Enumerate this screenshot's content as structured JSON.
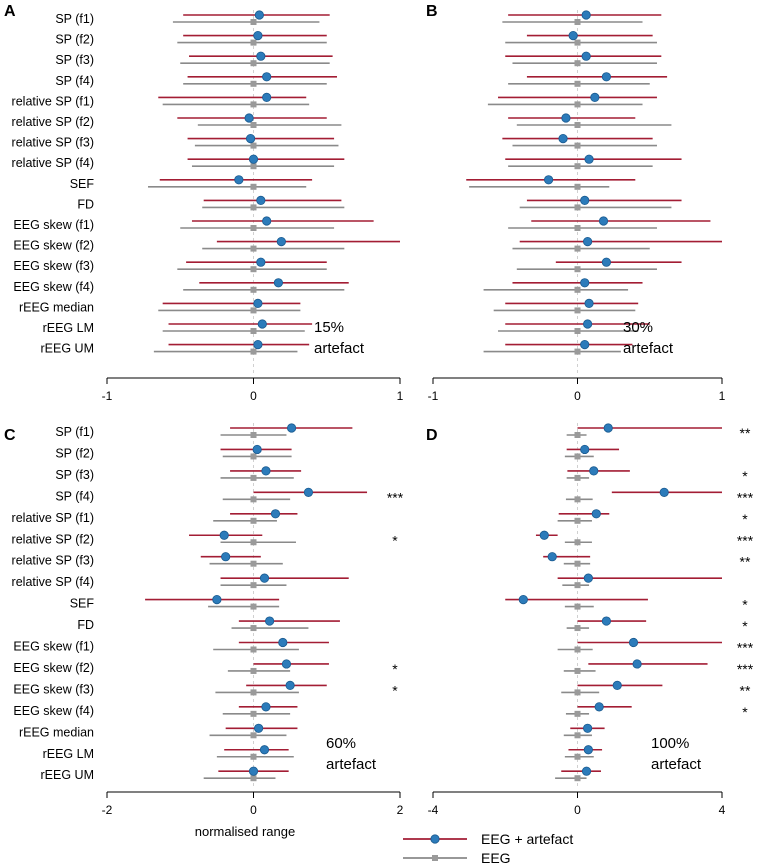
{
  "chart_data": {
    "type": "forest",
    "features": [
      "SP (f1)",
      "SP (f2)",
      "SP (f3)",
      "SP (f4)",
      "relative SP (f1)",
      "relative SP (f2)",
      "relative SP (f3)",
      "relative SP (f4)",
      "SEF",
      "FD",
      "EEG skew (f1)",
      "EEG skew (f2)",
      "EEG skew (f3)",
      "EEG skew (f4)",
      "rEEG median",
      "rEEG LM",
      "rEEG UM"
    ],
    "xlabel": "normalised range",
    "legend": {
      "artefact": "EEG + artefact",
      "clean": "EEG"
    },
    "colors": {
      "artefact": "#a31d34",
      "clean": "#8a8a8a",
      "point": "#2c7bba",
      "square": "#9a9a9a"
    },
    "panels": [
      {
        "letter": "A",
        "annotation": [
          "15%",
          "artefact"
        ],
        "xlim": [
          -1,
          1
        ],
        "ticks": [
          "-1",
          "0",
          "1"
        ],
        "artefact": [
          [
            0.04,
            -0.48,
            0.52
          ],
          [
            0.03,
            -0.48,
            0.5
          ],
          [
            0.05,
            -0.44,
            0.54
          ],
          [
            0.09,
            -0.45,
            0.57
          ],
          [
            0.09,
            -0.65,
            0.36
          ],
          [
            -0.03,
            -0.52,
            0.5
          ],
          [
            -0.02,
            -0.45,
            0.55
          ],
          [
            0.0,
            -0.45,
            0.62
          ],
          [
            -0.1,
            -0.64,
            0.4
          ],
          [
            0.05,
            -0.34,
            0.6
          ],
          [
            0.09,
            -0.42,
            0.82
          ],
          [
            0.19,
            -0.25,
            1.0
          ],
          [
            0.05,
            -0.46,
            0.5
          ],
          [
            0.17,
            -0.37,
            0.65
          ],
          [
            0.03,
            -0.62,
            0.32
          ],
          [
            0.06,
            -0.58,
            0.4
          ],
          [
            0.03,
            -0.58,
            0.38
          ]
        ],
        "clean": [
          [
            0.0,
            -0.55,
            0.45
          ],
          [
            0.0,
            -0.52,
            0.5
          ],
          [
            0.0,
            -0.5,
            0.52
          ],
          [
            0.0,
            -0.48,
            0.5
          ],
          [
            0.0,
            -0.62,
            0.38
          ],
          [
            0.0,
            -0.38,
            0.6
          ],
          [
            0.0,
            -0.4,
            0.58
          ],
          [
            0.0,
            -0.42,
            0.55
          ],
          [
            0.0,
            -0.72,
            0.36
          ],
          [
            0.0,
            -0.35,
            0.62
          ],
          [
            0.0,
            -0.5,
            0.55
          ],
          [
            0.0,
            -0.35,
            0.62
          ],
          [
            0.0,
            -0.52,
            0.5
          ],
          [
            0.0,
            -0.48,
            0.62
          ],
          [
            0.0,
            -0.65,
            0.32
          ],
          [
            0.0,
            -0.62,
            0.35
          ],
          [
            0.0,
            -0.68,
            0.3
          ]
        ],
        "stars": [
          "",
          "",
          "",
          "",
          "",
          "",
          "",
          "",
          "",
          "",
          "",
          "",
          "",
          "",
          "",
          "",
          ""
        ]
      },
      {
        "letter": "B",
        "annotation": [
          "30%",
          "artefact"
        ],
        "xlim": [
          -1,
          1
        ],
        "ticks": [
          "-1",
          "0",
          "1"
        ],
        "artefact": [
          [
            0.06,
            -0.48,
            0.58
          ],
          [
            -0.03,
            -0.35,
            0.52
          ],
          [
            0.06,
            -0.5,
            0.58
          ],
          [
            0.2,
            -0.35,
            0.62
          ],
          [
            0.12,
            -0.55,
            0.55
          ],
          [
            -0.08,
            -0.48,
            0.4
          ],
          [
            -0.1,
            -0.52,
            0.52
          ],
          [
            0.08,
            -0.5,
            0.72
          ],
          [
            -0.2,
            -0.77,
            0.4
          ],
          [
            0.05,
            -0.35,
            0.72
          ],
          [
            0.18,
            -0.32,
            0.92
          ],
          [
            0.07,
            -0.4,
            1.0
          ],
          [
            0.2,
            -0.15,
            0.72
          ],
          [
            0.05,
            -0.45,
            0.45
          ],
          [
            0.08,
            -0.5,
            0.42
          ],
          [
            0.07,
            -0.5,
            0.5
          ],
          [
            0.05,
            -0.5,
            0.38
          ]
        ],
        "clean": [
          [
            0.0,
            -0.52,
            0.45
          ],
          [
            0.0,
            -0.5,
            0.55
          ],
          [
            0.0,
            -0.45,
            0.55
          ],
          [
            0.0,
            -0.48,
            0.5
          ],
          [
            0.0,
            -0.62,
            0.45
          ],
          [
            0.0,
            -0.42,
            0.65
          ],
          [
            0.0,
            -0.45,
            0.55
          ],
          [
            0.0,
            -0.48,
            0.52
          ],
          [
            0.0,
            -0.75,
            0.22
          ],
          [
            0.0,
            -0.4,
            0.65
          ],
          [
            0.0,
            -0.48,
            0.55
          ],
          [
            0.0,
            -0.45,
            0.5
          ],
          [
            0.0,
            -0.42,
            0.55
          ],
          [
            0.0,
            -0.65,
            0.35
          ],
          [
            0.0,
            -0.58,
            0.4
          ],
          [
            0.0,
            -0.55,
            0.42
          ],
          [
            0.0,
            -0.65,
            0.3
          ]
        ],
        "stars": [
          "",
          "",
          "",
          "",
          "",
          "",
          "",
          "",
          "",
          "",
          "",
          "",
          "",
          "",
          "",
          "",
          ""
        ]
      },
      {
        "letter": "C",
        "annotation": [
          "60%",
          "artefact"
        ],
        "xlim": [
          -2,
          2
        ],
        "ticks": [
          "-2",
          "0",
          "2"
        ],
        "artefact": [
          [
            0.52,
            -0.32,
            1.35
          ],
          [
            0.05,
            -0.45,
            0.52
          ],
          [
            0.17,
            -0.32,
            0.65
          ],
          [
            0.75,
            0.0,
            1.55
          ],
          [
            0.3,
            -0.32,
            0.6
          ],
          [
            -0.4,
            -0.88,
            0.12
          ],
          [
            -0.38,
            -0.72,
            0.1
          ],
          [
            0.15,
            -0.45,
            1.3
          ],
          [
            -0.5,
            -1.48,
            0.35
          ],
          [
            0.22,
            -0.2,
            1.18
          ],
          [
            0.4,
            -0.2,
            1.03
          ],
          [
            0.45,
            0.0,
            1.03
          ],
          [
            0.5,
            -0.1,
            1.0
          ],
          [
            0.17,
            -0.2,
            0.6
          ],
          [
            0.07,
            -0.38,
            0.6
          ],
          [
            0.15,
            -0.4,
            0.48
          ],
          [
            0.0,
            -0.48,
            0.48
          ]
        ],
        "clean": [
          [
            0.0,
            -0.45,
            0.45
          ],
          [
            0.0,
            -0.42,
            0.52
          ],
          [
            0.0,
            -0.45,
            0.55
          ],
          [
            0.0,
            -0.42,
            0.5
          ],
          [
            0.0,
            -0.55,
            0.32
          ],
          [
            0.0,
            -0.45,
            0.58
          ],
          [
            0.0,
            -0.6,
            0.4
          ],
          [
            0.0,
            -0.45,
            0.45
          ],
          [
            0.0,
            -0.62,
            0.35
          ],
          [
            0.0,
            -0.3,
            0.75
          ],
          [
            0.0,
            -0.55,
            0.62
          ],
          [
            0.0,
            -0.35,
            0.5
          ],
          [
            0.0,
            -0.52,
            0.62
          ],
          [
            0.0,
            -0.42,
            0.5
          ],
          [
            0.0,
            -0.6,
            0.45
          ],
          [
            0.0,
            -0.5,
            0.55
          ],
          [
            0.0,
            -0.68,
            0.3
          ]
        ],
        "stars": [
          "",
          "",
          "",
          "***",
          "",
          "*",
          "",
          "",
          "",
          "",
          "",
          "*",
          "*",
          "",
          "",
          "",
          ""
        ]
      },
      {
        "letter": "D",
        "annotation": [
          "100%",
          "artefact"
        ],
        "xlim": [
          -4,
          4
        ],
        "ticks": [
          "-4",
          "0",
          "4"
        ],
        "artefact": [
          [
            0.85,
            0.0,
            4.0
          ],
          [
            0.2,
            -0.3,
            1.15
          ],
          [
            0.45,
            -0.28,
            1.45
          ],
          [
            2.4,
            0.95,
            4.0
          ],
          [
            0.52,
            -0.52,
            0.88
          ],
          [
            -0.92,
            -1.15,
            -0.55
          ],
          [
            -0.7,
            -0.95,
            0.35
          ],
          [
            0.3,
            -0.55,
            4.0
          ],
          [
            -1.5,
            -2.0,
            1.95
          ],
          [
            0.8,
            0.0,
            1.9
          ],
          [
            1.55,
            0.0,
            4.0
          ],
          [
            1.65,
            0.3,
            3.6
          ],
          [
            1.1,
            0.0,
            2.35
          ],
          [
            0.6,
            0.0,
            1.5
          ],
          [
            0.28,
            -0.2,
            0.75
          ],
          [
            0.3,
            -0.25,
            0.68
          ],
          [
            0.25,
            -0.45,
            0.65
          ]
        ],
        "clean": [
          [
            0.0,
            -0.3,
            0.25
          ],
          [
            0.0,
            -0.35,
            0.45
          ],
          [
            0.0,
            -0.3,
            0.32
          ],
          [
            0.0,
            -0.32,
            0.42
          ],
          [
            0.0,
            -0.55,
            0.4
          ],
          [
            0.0,
            -0.35,
            0.4
          ],
          [
            0.0,
            -0.38,
            0.35
          ],
          [
            0.0,
            -0.42,
            0.32
          ],
          [
            0.0,
            -0.35,
            0.45
          ],
          [
            0.0,
            -0.3,
            0.32
          ],
          [
            0.0,
            -0.55,
            0.42
          ],
          [
            0.0,
            -0.38,
            0.5
          ],
          [
            0.0,
            -0.45,
            0.6
          ],
          [
            0.0,
            -0.32,
            0.32
          ],
          [
            0.0,
            -0.38,
            0.4
          ],
          [
            0.0,
            -0.35,
            0.45
          ],
          [
            0.0,
            -0.62,
            0.25
          ]
        ],
        "stars": [
          "**",
          "",
          "*",
          "***",
          "*",
          "***",
          "**",
          "",
          "*",
          "*",
          "***",
          "***",
          "**",
          "*",
          "",
          "",
          ""
        ]
      }
    ]
  }
}
